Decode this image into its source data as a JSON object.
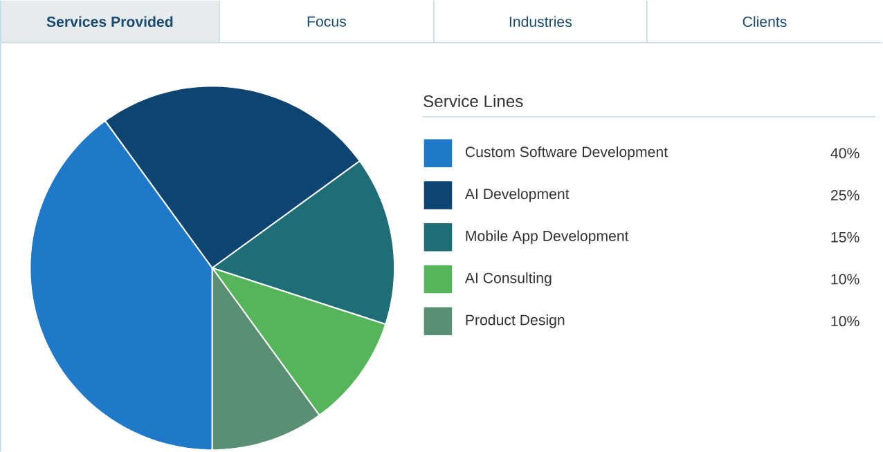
{
  "chart_data": {
    "type": "pie",
    "legend_title": "Service Lines",
    "categories": [
      "Custom Software Development",
      "AI Development",
      "Mobile App Development",
      "AI Consulting",
      "Product Design"
    ],
    "values": [
      40,
      25,
      15,
      10,
      10
    ],
    "colors": [
      "#1f78c8",
      "#0e4470",
      "#1f6e77",
      "#56b45a",
      "#5a8f73"
    ],
    "value_labels": [
      "40%",
      "25%",
      "15%",
      "10%",
      "10%"
    ],
    "legend": "right",
    "annotations": [
      "Services Provided",
      "Focus",
      "Industries",
      "Clients"
    ]
  }
}
